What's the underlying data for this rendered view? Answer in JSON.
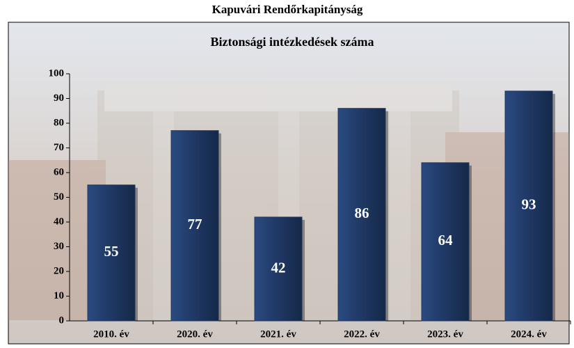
{
  "chart_data": {
    "type": "bar",
    "title": "Kapuvári Rendőrkapitányság",
    "subtitle": "Biztonsági intézkedések száma",
    "categories": [
      "2010. év",
      "2020. év",
      "2021. év",
      "2022. év",
      "2023. év",
      "2024. év"
    ],
    "values": [
      55,
      77,
      42,
      86,
      64,
      93
    ],
    "color": "#1f3864",
    "ylim": [
      0,
      100
    ],
    "yticks": [
      0,
      10,
      20,
      30,
      40,
      50,
      60,
      70,
      80,
      90,
      100
    ]
  }
}
